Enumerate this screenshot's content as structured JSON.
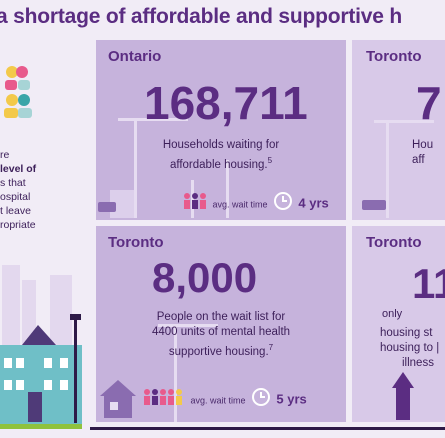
{
  "headline": "a shortage of affordable and supportive h",
  "left_panel": {
    "lines": [
      "re",
      "level of",
      "s that",
      "ospital",
      "t leave",
      "ropriate"
    ]
  },
  "cards": {
    "ontario_waitlist": {
      "label": "Ontario",
      "big_number": "168,711",
      "description_line1": "Households waiting for",
      "description_line2": "affordable housing.",
      "footnote": "5",
      "wait_label": "avg. wait time",
      "wait_value": "4 yrs"
    },
    "toronto_top_partial": {
      "label": "Toronto",
      "big_number": "7",
      "description_line1": "Hou",
      "description_line2": "aff"
    },
    "toronto_supportive": {
      "label": "Toronto",
      "big_number": "8,000",
      "description_line1": "People on the wait list for",
      "description_line2": "4400 units of mental health",
      "description_line3": "supportive housing.",
      "footnote": "7",
      "wait_label": "avg. wait time",
      "wait_value": "5 yrs"
    },
    "toronto_bottom_partial": {
      "label": "Toronto",
      "prefix": "only",
      "big_number": "11",
      "description_line1": "housing st",
      "description_line2": "housing to |",
      "description_line3": "illness"
    }
  },
  "colors": {
    "title_purple": "#5b2d82",
    "card_purple": "#c6b3dc",
    "card_light": "#d8c9e8",
    "accent_green": "#8fc23c",
    "accent_teal": "#3aa5a8",
    "accent_pink": "#e85a8c",
    "accent_yellow": "#f3c94a"
  }
}
